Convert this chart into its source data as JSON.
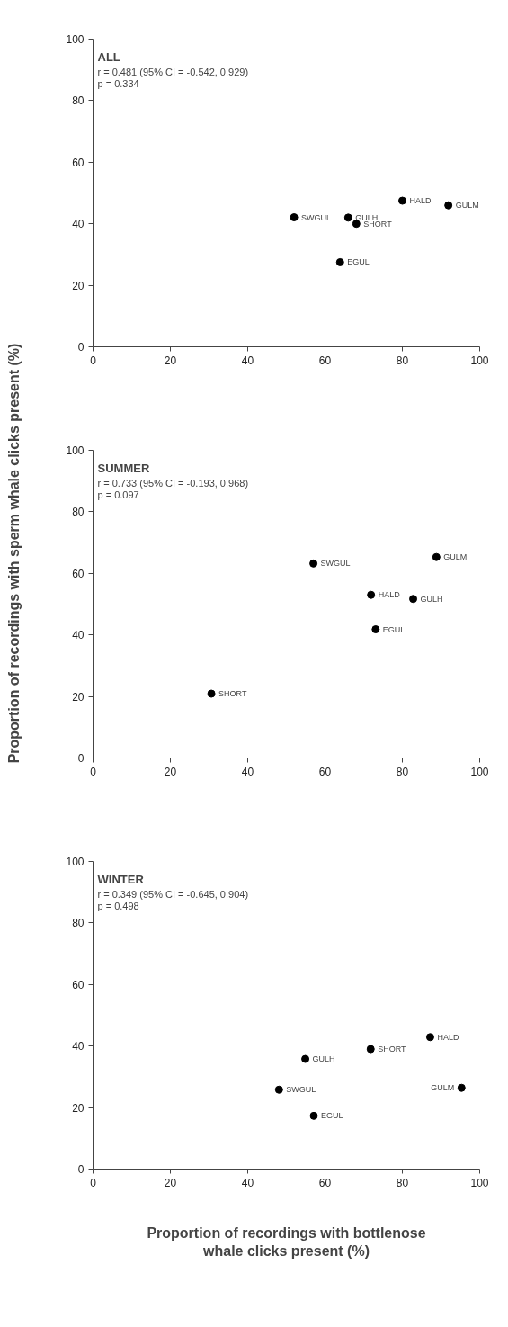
{
  "chart_data": [
    {
      "type": "scatter",
      "title": "ALL",
      "x": [
        52.0,
        66.0,
        68.1,
        80.0,
        91.9,
        63.9
      ],
      "values": [
        42.1,
        42.0,
        40.0,
        47.5,
        46.0,
        27.5
      ],
      "color": "#000000",
      "marker": "circle",
      "xlim": [
        0,
        100
      ],
      "ylim": [
        0,
        100
      ],
      "xticks": [
        0,
        20,
        40,
        60,
        80,
        100
      ],
      "yticks": [
        0,
        20,
        40,
        60,
        80,
        100
      ],
      "grid": false,
      "annotations": [
        "r = 0.481 (95% CI = -0.542, 0.929)",
        "p = 0.334",
        {
          "text": "SWGUL",
          "x": 52.0,
          "y": 42.1
        },
        {
          "text": "GULH",
          "x": 66.0,
          "y": 42.0
        },
        {
          "text": "SHORT",
          "x": 68.1,
          "y": 40.0
        },
        {
          "text": "HALD",
          "x": 80.0,
          "y": 47.5
        },
        {
          "text": "GULM",
          "x": 91.9,
          "y": 46.0
        },
        {
          "text": "EGUL",
          "x": 63.9,
          "y": 27.5
        }
      ]
    },
    {
      "type": "scatter",
      "title": "SUMMER",
      "ylabel": "Proportion of recordings with sperm whale clicks present (%)",
      "x": [
        57.0,
        88.8,
        71.9,
        82.8,
        73.1,
        30.6
      ],
      "values": [
        63.2,
        65.3,
        53.0,
        51.7,
        41.8,
        20.9
      ],
      "color": "#000000",
      "marker": "circle",
      "xlim": [
        0,
        100
      ],
      "ylim": [
        0,
        100
      ],
      "xticks": [
        0,
        20,
        40,
        60,
        80,
        100
      ],
      "yticks": [
        0,
        20,
        40,
        60,
        80,
        100
      ],
      "grid": false,
      "annotations": [
        "r = 0.733 (95% CI = -0.193, 0.968)",
        "p = 0.097",
        {
          "text": "SWGUL",
          "x": 57.0,
          "y": 63.2
        },
        {
          "text": "GULM",
          "x": 88.8,
          "y": 65.3
        },
        {
          "text": "HALD",
          "x": 71.9,
          "y": 53.0
        },
        {
          "text": "GULH",
          "x": 82.8,
          "y": 51.7
        },
        {
          "text": "EGUL",
          "x": 73.1,
          "y": 41.8
        },
        {
          "text": "SHORT",
          "x": 30.6,
          "y": 20.9
        }
      ]
    },
    {
      "type": "scatter",
      "title": "WINTER",
      "xlabel": "Proportion of recordings with bottlenose\nwhale clicks present (%)",
      "x": [
        87.2,
        71.8,
        54.9,
        48.1,
        95.3,
        57.1
      ],
      "values": [
        42.9,
        39.0,
        35.8,
        25.8,
        26.4,
        17.3
      ],
      "color": "#000000",
      "marker": "circle",
      "xlim": [
        0,
        100
      ],
      "ylim": [
        0,
        100
      ],
      "xticks": [
        0,
        20,
        40,
        60,
        80,
        100
      ],
      "yticks": [
        0,
        20,
        40,
        60,
        80,
        100
      ],
      "grid": false,
      "annotations": [
        "r = 0.349 (95% CI = -0.645, 0.904)",
        "p = 0.498",
        {
          "text": "HALD",
          "x": 87.2,
          "y": 42.9
        },
        {
          "text": "SHORT",
          "x": 71.8,
          "y": 39.0
        },
        {
          "text": "GULH",
          "x": 54.9,
          "y": 35.8
        },
        {
          "text": "SWGUL",
          "x": 48.1,
          "y": 25.8
        },
        {
          "text": "GULM",
          "x": 95.3,
          "y": 26.4
        },
        {
          "text": "EGUL",
          "x": 57.1,
          "y": 17.3
        }
      ]
    }
  ]
}
